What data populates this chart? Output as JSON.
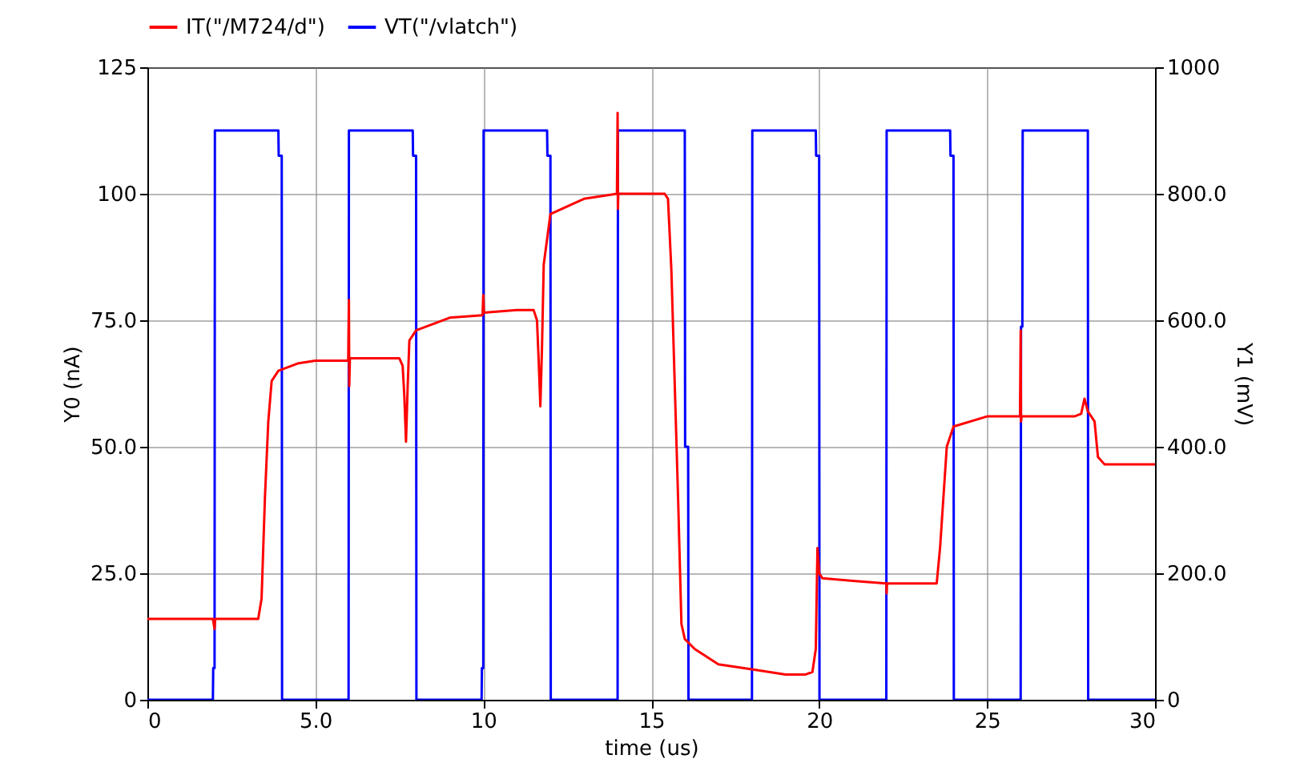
{
  "chart_data": {
    "type": "line",
    "xlabel": "time (us)",
    "ylabel": "Y0 (nA)",
    "y2label": "Y1 (mV)",
    "legend": "top left",
    "grid": true,
    "xlim": [
      0,
      30
    ],
    "xticks": [
      0,
      {
        "value": 5,
        "label": "5.0"
      },
      10,
      15,
      20,
      25,
      30
    ],
    "ylim": [
      0,
      125
    ],
    "yticks": [
      0,
      {
        "value": 25,
        "label": "25.0"
      },
      {
        "value": 50,
        "label": "50.0"
      },
      {
        "value": 75,
        "label": "75.0"
      },
      100,
      125
    ],
    "y2lim": [
      0,
      1000
    ],
    "y2ticks": [
      0,
      {
        "value": 200,
        "label": "200.0"
      },
      {
        "value": 400,
        "label": "400.0"
      },
      {
        "value": 600,
        "label": "600.0"
      },
      {
        "value": 800,
        "label": "800.0"
      },
      1000
    ],
    "series": [
      {
        "name": "IT(\"/M724/d\")",
        "color": "#ff0000",
        "x": [
          0,
          1.95,
          2.0,
          2.02,
          2.05,
          3.3,
          3.4,
          3.5,
          3.6,
          3.7,
          3.9,
          4.5,
          5,
          5.98,
          6.0,
          6.01,
          6.03,
          7,
          7.5,
          7.6,
          7.65,
          7.7,
          7.75,
          7.8,
          8,
          9,
          9.98,
          10.0,
          10.02,
          11,
          11.5,
          11.6,
          11.65,
          11.7,
          11.75,
          11.8,
          12,
          13,
          13.98,
          14.0,
          14.01,
          14.02,
          15,
          15.4,
          15.5,
          15.6,
          15.8,
          15.9,
          16,
          16.3,
          17,
          18,
          19,
          19.6,
          19.8,
          19.9,
          19.95,
          20,
          20.1,
          21,
          22,
          22.01,
          22.02,
          23.5,
          23.6,
          23.8,
          24,
          25,
          25.98,
          26.0,
          26.01,
          26.03,
          27.6,
          27.8,
          27.9,
          28,
          28.2,
          28.3,
          28.5,
          30
        ],
        "values": [
          16,
          16,
          14,
          16,
          16,
          16,
          20,
          40,
          55,
          63,
          65,
          66.5,
          67,
          67,
          79,
          62,
          67.5,
          67.5,
          67.5,
          66,
          60,
          51,
          62,
          71,
          73,
          75.5,
          76,
          80,
          76.5,
          77,
          77,
          75,
          67,
          58,
          70,
          86,
          96,
          99,
          100,
          116,
          97,
          100,
          100,
          100,
          99,
          85,
          40,
          15,
          12,
          10,
          7,
          6,
          5,
          5,
          5.5,
          10,
          30,
          25,
          24,
          23.5,
          23,
          21,
          23,
          23,
          30,
          50,
          54,
          56,
          56,
          73,
          55,
          56,
          56,
          56.5,
          59.5,
          57,
          55,
          48,
          46.5,
          46.5
        ]
      },
      {
        "name": "VT(\"/vlatch\")",
        "color": "#0000ff",
        "axis": "y2",
        "x": [
          0,
          1.95,
          1.96,
          2.0,
          2.01,
          3.9,
          3.91,
          4.0,
          4.01,
          5.99,
          6.0,
          7.9,
          7.91,
          8.0,
          8.01,
          9.95,
          9.96,
          10.0,
          10.01,
          11.9,
          11.91,
          12.0,
          12.01,
          14.0,
          14.01,
          16.0,
          16.01,
          16.1,
          16.11,
          18.0,
          18.01,
          19.9,
          19.91,
          20.0,
          20.01,
          22.0,
          22.01,
          23.9,
          23.91,
          24.0,
          24.01,
          26.0,
          26.01,
          26.05,
          26.06,
          28.0,
          28.01,
          30
        ],
        "values": [
          0,
          0,
          50,
          50,
          900,
          900,
          860,
          860,
          0,
          0,
          900,
          900,
          860,
          860,
          0,
          0,
          50,
          50,
          900,
          900,
          860,
          860,
          0,
          0,
          900,
          900,
          400,
          400,
          0,
          0,
          900,
          900,
          860,
          860,
          0,
          0,
          900,
          900,
          860,
          860,
          0,
          0,
          590,
          590,
          900,
          900,
          0,
          0
        ]
      }
    ]
  }
}
